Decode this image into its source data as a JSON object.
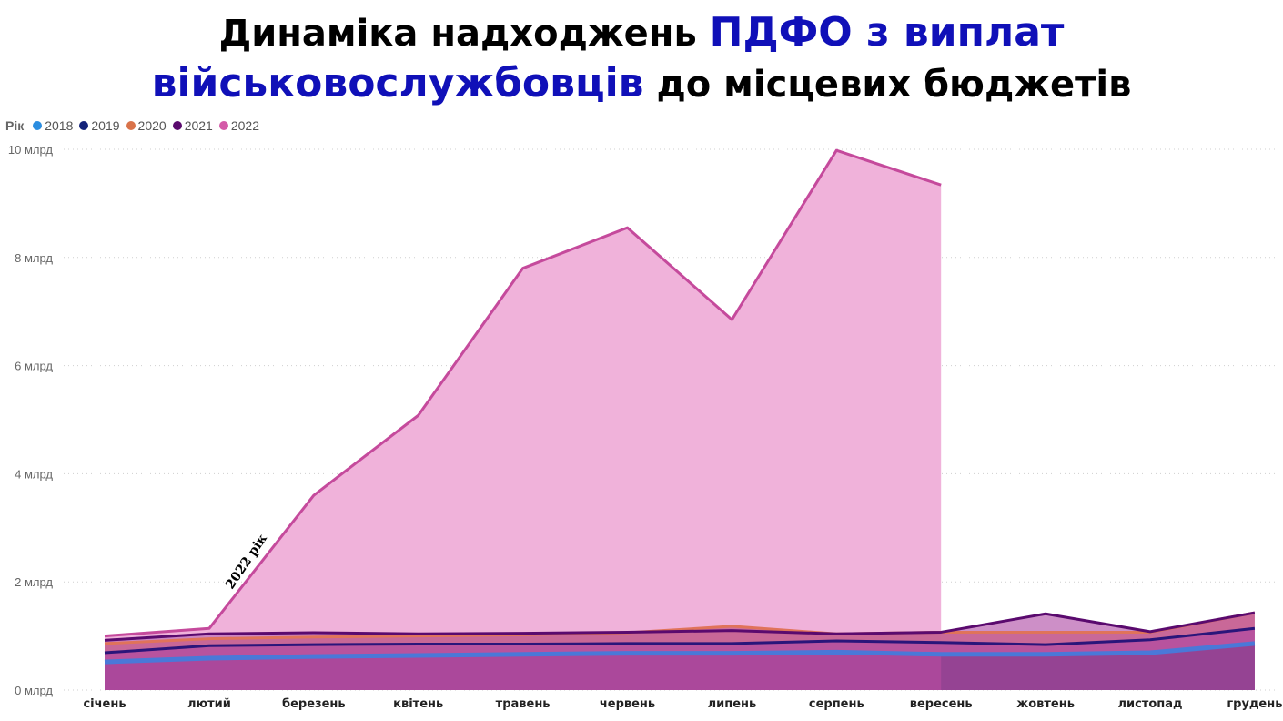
{
  "title": {
    "line1_prefix": "Динаміка надходжень ",
    "line1_highlight": "ПДФО з виплат",
    "line2_highlight": "військовослужбовців",
    "line2_suffix": " до місцевих бюджетів",
    "highlight_color": "#1010b8"
  },
  "legend": {
    "label": "Рік",
    "items": [
      {
        "name": "2018",
        "color": "#2b8de0"
      },
      {
        "name": "2019",
        "color": "#13237a"
      },
      {
        "name": "2020",
        "color": "#d9734a"
      },
      {
        "name": "2021",
        "color": "#5a0a6e"
      },
      {
        "name": "2022",
        "color": "#d45aa8"
      }
    ]
  },
  "annotation": "2022 рік",
  "chart_data": {
    "type": "area",
    "title": "Динаміка надходжень ПДФО з виплат військовослужбовців до місцевих бюджетів",
    "xlabel": "",
    "ylabel": "",
    "ylim": [
      0,
      10
    ],
    "y_unit": "млрд",
    "yticks": [
      "0 млрд",
      "2 млрд",
      "4 млрд",
      "6 млрд",
      "8 млрд",
      "10 млрд"
    ],
    "grid": true,
    "legend_position": "top-left",
    "categories": [
      "січень",
      "лютий",
      "березень",
      "квітень",
      "травень",
      "червень",
      "липень",
      "серпень",
      "вересень",
      "жовтень",
      "листопад",
      "грудень"
    ],
    "series": [
      {
        "name": "2018",
        "color": "#2b8de0",
        "values": [
          0.52,
          0.59,
          0.62,
          0.64,
          0.66,
          0.68,
          0.68,
          0.7,
          0.66,
          0.66,
          0.69,
          0.86
        ]
      },
      {
        "name": "2019",
        "color": "#13237a",
        "values": [
          0.69,
          0.82,
          0.84,
          0.85,
          0.85,
          0.86,
          0.86,
          0.91,
          0.88,
          0.84,
          0.93,
          1.14
        ]
      },
      {
        "name": "2020",
        "color": "#d9734a",
        "values": [
          0.86,
          0.95,
          0.98,
          1.0,
          1.02,
          1.06,
          1.18,
          1.04,
          1.07,
          1.07,
          1.07,
          1.43
        ]
      },
      {
        "name": "2021",
        "color": "#5a0a6e",
        "values": [
          0.92,
          1.04,
          1.06,
          1.04,
          1.05,
          1.07,
          1.1,
          1.04,
          1.07,
          1.41,
          1.08,
          1.43
        ]
      },
      {
        "name": "2022",
        "color": "#d45aa8",
        "values": [
          1.0,
          1.14,
          3.6,
          5.08,
          7.8,
          8.55,
          6.85,
          9.98,
          9.34,
          null,
          null,
          null
        ]
      }
    ]
  }
}
